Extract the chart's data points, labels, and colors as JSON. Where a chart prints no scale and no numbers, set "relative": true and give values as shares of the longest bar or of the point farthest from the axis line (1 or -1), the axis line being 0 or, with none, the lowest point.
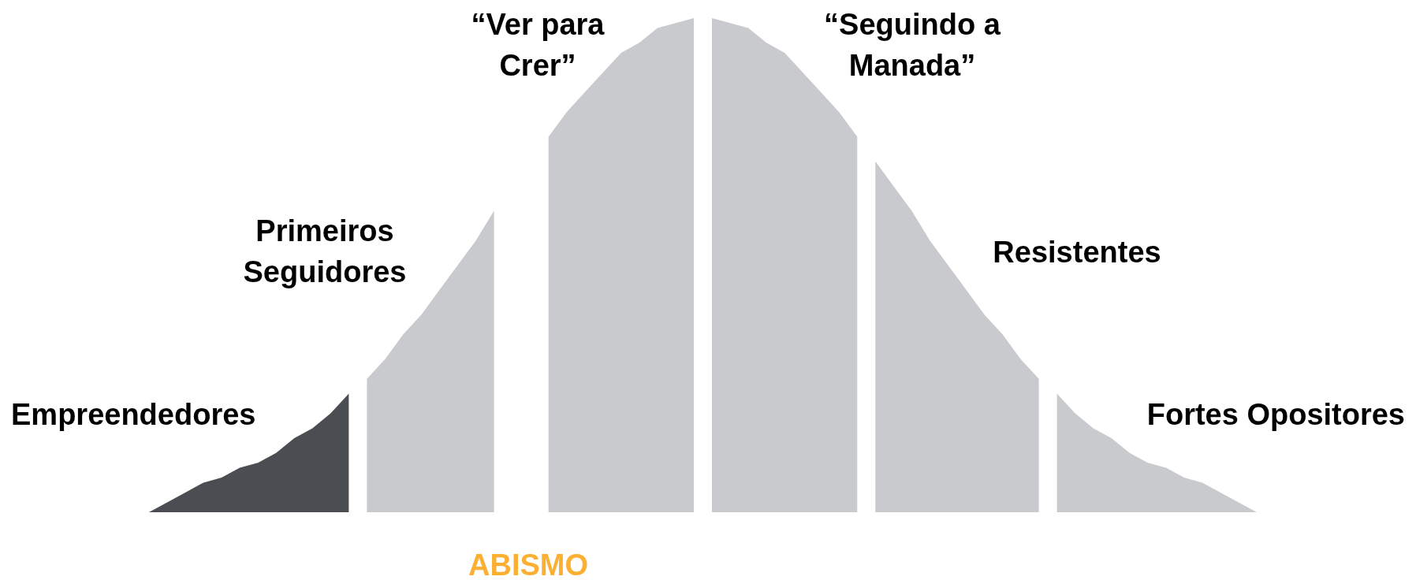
{
  "chart_data": {
    "type": "area",
    "relative": true,
    "tick_labels": false,
    "categories": [
      null,
      null,
      null,
      null,
      null,
      null,
      null,
      null,
      null,
      null,
      null,
      null,
      null,
      null,
      null,
      null,
      null,
      null,
      null,
      null,
      null,
      null,
      null,
      null,
      null,
      null,
      null,
      null,
      null,
      null,
      null,
      null,
      null,
      null,
      null,
      null,
      null,
      null,
      null,
      null,
      null,
      null,
      null,
      null,
      null,
      null,
      null,
      null,
      null,
      null,
      null,
      null,
      null,
      null,
      null,
      null,
      null,
      null,
      null,
      null,
      null,
      null
    ],
    "series": [
      {
        "name": "Empreendedores",
        "color": "#4a4d52",
        "values": [
          0,
          0.02,
          0.04,
          0.06,
          0.07,
          0.09,
          0.1,
          0.12,
          0.15,
          0.17,
          0.2,
          0.24,
          null,
          null,
          null,
          null,
          null,
          null,
          null,
          null,
          null,
          null,
          null,
          null,
          null,
          null,
          null,
          null,
          null,
          null,
          null,
          null,
          null,
          null,
          null,
          null,
          null,
          null,
          null,
          null,
          null,
          null,
          null,
          null,
          null,
          null,
          null,
          null,
          null,
          null,
          null,
          null,
          null,
          null,
          null,
          null,
          null,
          null,
          null,
          null,
          null,
          null
        ]
      },
      {
        "name": "Primeiros Seguidores",
        "color": "#c8cacd",
        "values": [
          null,
          null,
          null,
          null,
          null,
          null,
          null,
          null,
          null,
          null,
          null,
          null,
          0.27,
          0.31,
          0.36,
          0.4,
          0.45,
          0.5,
          0.55,
          0.61,
          null,
          null,
          null,
          null,
          null,
          null,
          null,
          null,
          null,
          null,
          null,
          null,
          null,
          null,
          null,
          null,
          null,
          null,
          null,
          null,
          null,
          null,
          null,
          null,
          null,
          null,
          null,
          null,
          null,
          null,
          null,
          null,
          null,
          null,
          null,
          null,
          null,
          null,
          null,
          null,
          null,
          null
        ]
      },
      {
        "name": "“Ver para Crer”",
        "color": "#c8cacd",
        "values": [
          null,
          null,
          null,
          null,
          null,
          null,
          null,
          null,
          null,
          null,
          null,
          null,
          null,
          null,
          null,
          null,
          null,
          null,
          null,
          null,
          null,
          null,
          0.76,
          0.81,
          0.85,
          0.89,
          0.93,
          0.95,
          0.98,
          0.99,
          1.0,
          null,
          null,
          null,
          null,
          null,
          null,
          null,
          null,
          null,
          null,
          null,
          null,
          null,
          null,
          null,
          null,
          null,
          null,
          null,
          null,
          null,
          null,
          null,
          null,
          null,
          null,
          null,
          null,
          null,
          null,
          null
        ]
      },
      {
        "name": "“Seguindo a Manada”",
        "color": "#c8cacd",
        "values": [
          null,
          null,
          null,
          null,
          null,
          null,
          null,
          null,
          null,
          null,
          null,
          null,
          null,
          null,
          null,
          null,
          null,
          null,
          null,
          null,
          null,
          null,
          null,
          null,
          null,
          null,
          null,
          null,
          null,
          null,
          null,
          1.0,
          0.99,
          0.98,
          0.95,
          0.93,
          0.89,
          0.85,
          0.81,
          0.76,
          null,
          null,
          null,
          null,
          null,
          null,
          null,
          null,
          null,
          null,
          null,
          null,
          null,
          null,
          null,
          null,
          null,
          null,
          null,
          null,
          null,
          null
        ]
      },
      {
        "name": "Resistentes",
        "color": "#c8cacd",
        "values": [
          null,
          null,
          null,
          null,
          null,
          null,
          null,
          null,
          null,
          null,
          null,
          null,
          null,
          null,
          null,
          null,
          null,
          null,
          null,
          null,
          null,
          null,
          null,
          null,
          null,
          null,
          null,
          null,
          null,
          null,
          null,
          null,
          null,
          null,
          null,
          null,
          null,
          null,
          null,
          null,
          0.71,
          0.66,
          0.61,
          0.55,
          0.5,
          0.45,
          0.4,
          0.36,
          0.31,
          0.27,
          null,
          null,
          null,
          null,
          null,
          null,
          null,
          null,
          null,
          null,
          null,
          null
        ]
      },
      {
        "name": "Fortes Opositores",
        "color": "#c8cacd",
        "values": [
          null,
          null,
          null,
          null,
          null,
          null,
          null,
          null,
          null,
          null,
          null,
          null,
          null,
          null,
          null,
          null,
          null,
          null,
          null,
          null,
          null,
          null,
          null,
          null,
          null,
          null,
          null,
          null,
          null,
          null,
          null,
          null,
          null,
          null,
          null,
          null,
          null,
          null,
          null,
          null,
          null,
          null,
          null,
          null,
          null,
          null,
          null,
          null,
          null,
          null,
          0.24,
          0.2,
          0.17,
          0.15,
          0.12,
          0.1,
          0.09,
          0.07,
          0.06,
          0.04,
          0.02,
          0
        ]
      }
    ],
    "annotations": [
      "ABISMO"
    ]
  }
}
